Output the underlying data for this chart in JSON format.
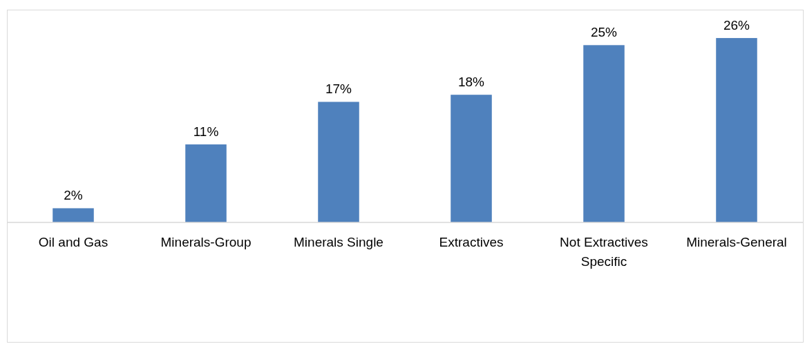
{
  "chart_data": {
    "type": "bar",
    "categories": [
      "Oil and Gas",
      "Minerals-Group",
      "Minerals Single",
      "Extractives",
      "Not Extractives Specific",
      "Minerals-General"
    ],
    "values": [
      2,
      11,
      17,
      18,
      25,
      26
    ],
    "value_labels": [
      "2%",
      "11%",
      "17%",
      "18%",
      "25%",
      "26%"
    ],
    "color": "#4f81bd",
    "ylim": [
      0,
      30
    ],
    "tick_labels": "x"
  }
}
